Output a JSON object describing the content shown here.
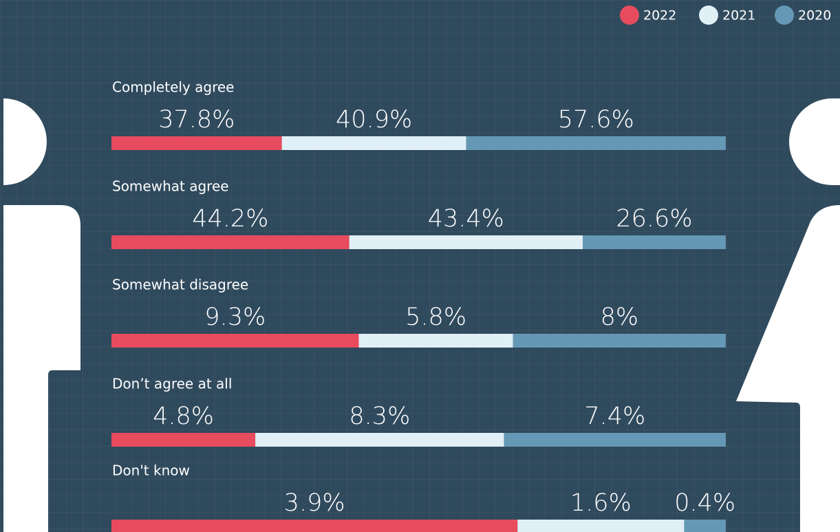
{
  "chart_data": {
    "type": "bar",
    "categories": [
      "Completely agree",
      "Somewhat agree",
      "Somewhat disagree",
      "Don’t agree at all",
      "Don't know"
    ],
    "series": [
      {
        "name": "2022",
        "color": "#e84b5e",
        "values": [
          37.8,
          44.2,
          9.3,
          4.8,
          3.9
        ],
        "value_labels": [
          "37.8%",
          "44.2%",
          "9.3%",
          "4.8%",
          "3.9%"
        ]
      },
      {
        "name": "2021",
        "color": "#e0f0f6",
        "values": [
          40.9,
          43.4,
          5.8,
          8.3,
          1.6
        ],
        "value_labels": [
          "40.9%",
          "43.4%",
          "5.8%",
          "8.3%",
          "1.6%"
        ]
      },
      {
        "name": "2020",
        "color": "#6598b4",
        "values": [
          57.6,
          26.6,
          8,
          7.4,
          0.4
        ],
        "value_labels": [
          "57.6%",
          "26.6%",
          "8%",
          "7.4%",
          "0.4%"
        ]
      }
    ],
    "legend": "top-right"
  }
}
